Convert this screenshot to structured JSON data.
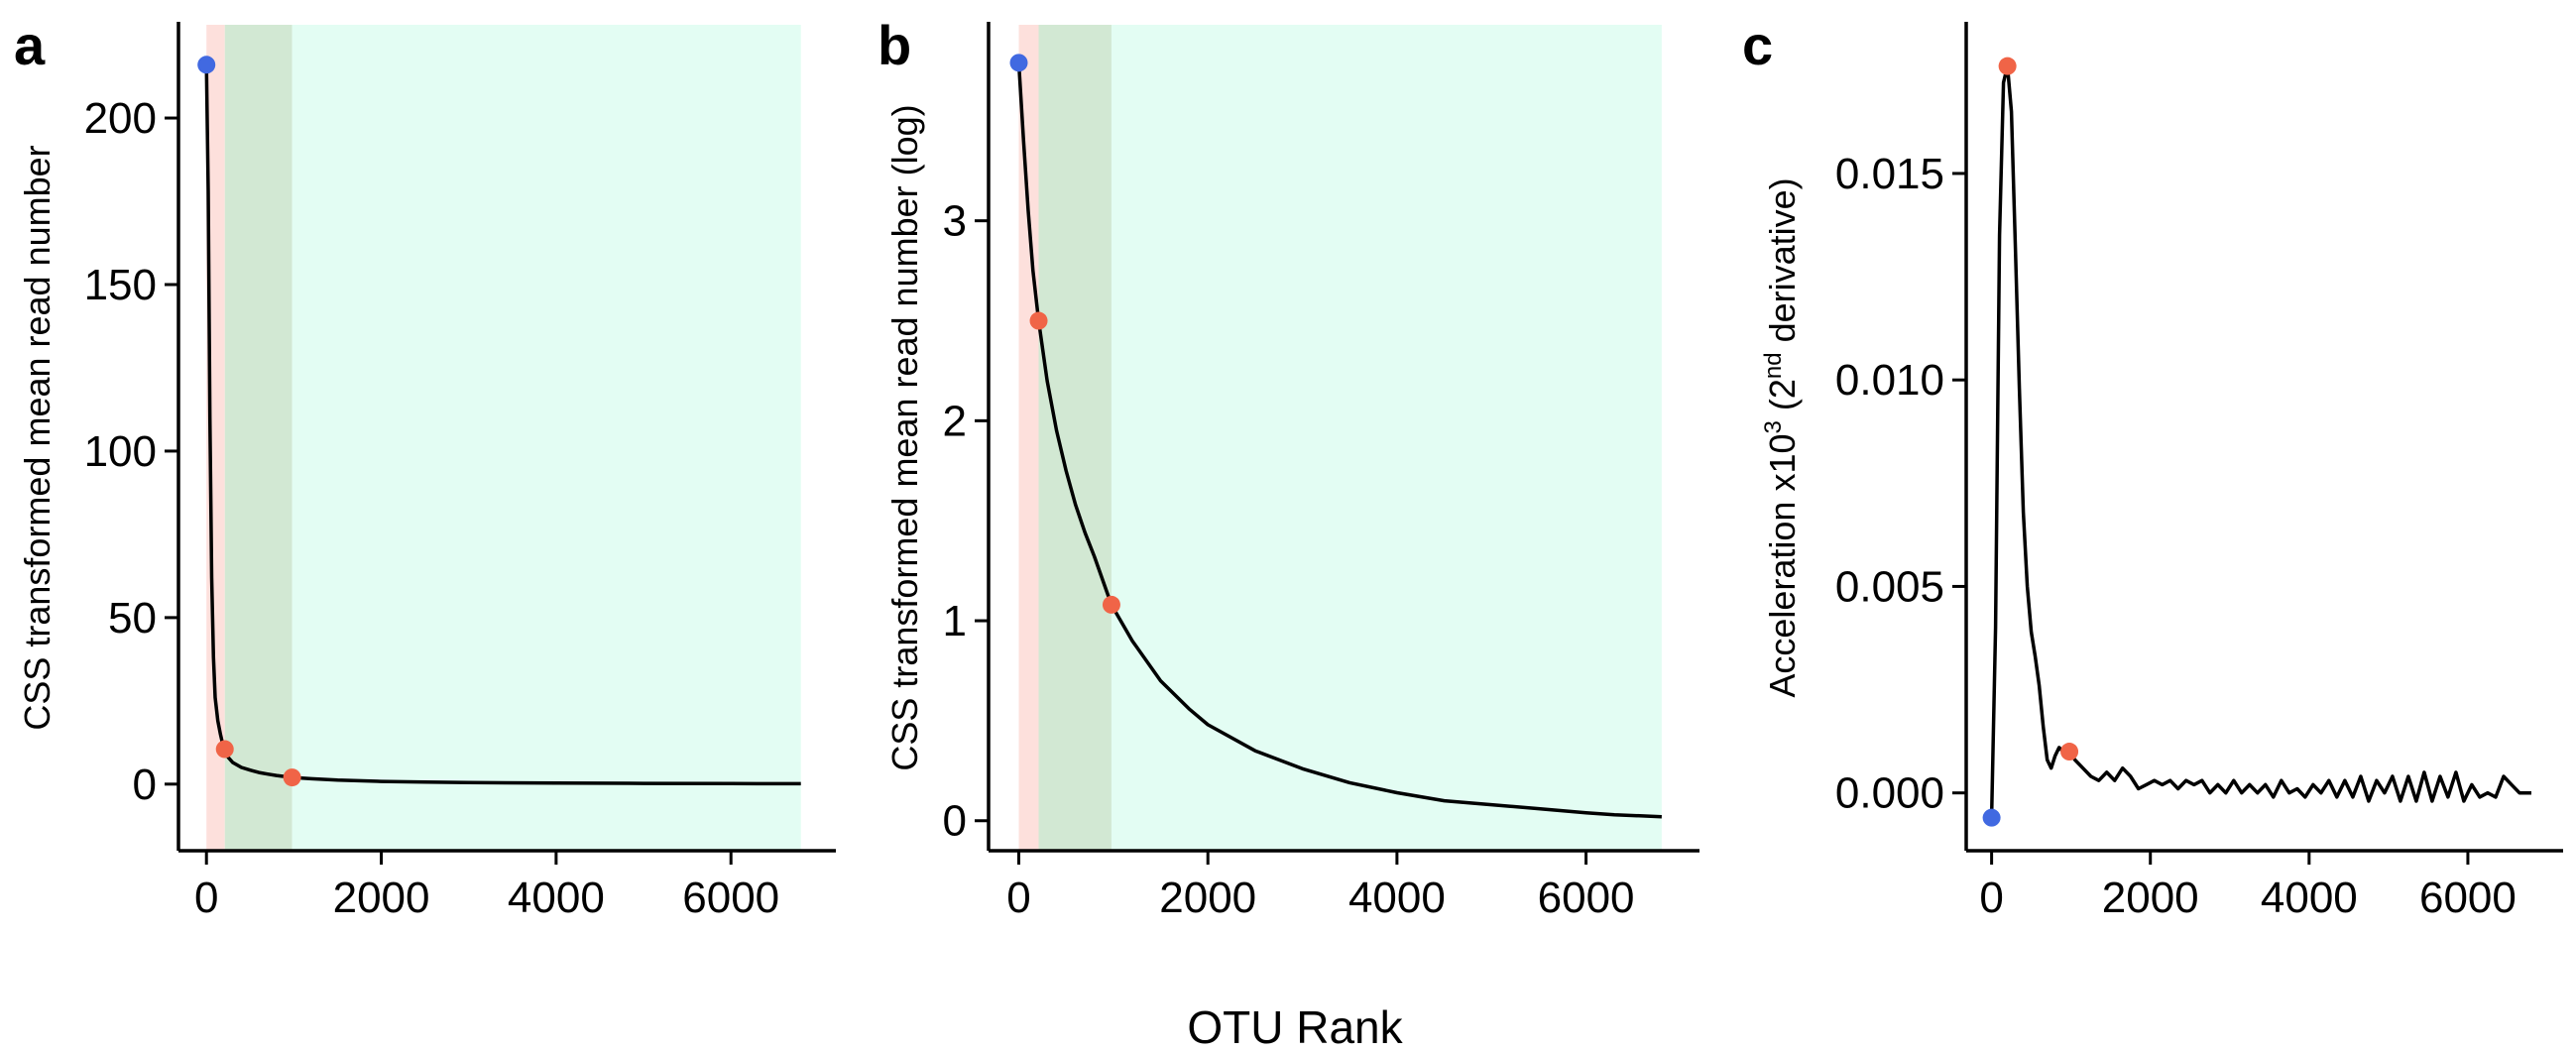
{
  "figure": {
    "xlabel": "OTU Rank"
  },
  "colors": {
    "band_core": "#fde0dc",
    "band_mid": "#d2e8d3",
    "band_rest": "#e3fdf3",
    "curve": "#000000",
    "point_blue": "#4169e1",
    "point_red": "#f06447",
    "axis": "#000000"
  },
  "chart_data": [
    {
      "panel": "a",
      "type": "line",
      "ylabel": "CSS transformed mean read number",
      "xlim": [
        -320,
        7200
      ],
      "ylim": [
        -20,
        228
      ],
      "xticks": [
        0,
        2000,
        4000,
        6000
      ],
      "yticks": [
        0,
        50,
        100,
        150,
        200
      ],
      "bands": [
        [
          0,
          210
        ],
        [
          210,
          980
        ],
        [
          980,
          6800
        ]
      ],
      "series": [
        {
          "x": [
            0,
            20,
            40,
            60,
            80,
            100,
            130,
            160,
            200,
            250,
            300,
            400,
            500,
            600,
            700,
            800,
            980,
            1200,
            1500,
            2000,
            2500,
            3000,
            4000,
            5000,
            6000,
            6800
          ],
          "y": [
            216,
            178,
            110,
            62,
            38,
            26,
            19,
            15,
            10.5,
            8,
            6.5,
            5,
            4.2,
            3.5,
            3,
            2.6,
            2,
            1.6,
            1.2,
            0.8,
            0.6,
            0.45,
            0.3,
            0.22,
            0.16,
            0.12
          ]
        }
      ],
      "points": [
        {
          "x": 0,
          "y": 216,
          "color": "blue"
        },
        {
          "x": 210,
          "y": 10.5,
          "color": "red"
        },
        {
          "x": 980,
          "y": 2,
          "color": "red"
        }
      ]
    },
    {
      "panel": "b",
      "type": "line",
      "ylabel": "CSS transformed mean read number (log)",
      "xlim": [
        -320,
        7200
      ],
      "ylim": [
        -0.15,
        3.98
      ],
      "xticks": [
        0,
        2000,
        4000,
        6000
      ],
      "yticks": [
        0,
        1,
        2,
        3
      ],
      "bands": [
        [
          0,
          210
        ],
        [
          210,
          980
        ],
        [
          980,
          6800
        ]
      ],
      "series": [
        {
          "x": [
            0,
            50,
            100,
            150,
            210,
            300,
            400,
            500,
            600,
            700,
            800,
            980,
            1200,
            1500,
            1800,
            2000,
            2500,
            3000,
            3500,
            4000,
            4500,
            5000,
            5500,
            6000,
            6300,
            6800
          ],
          "y": [
            3.79,
            3.4,
            3.05,
            2.75,
            2.5,
            2.2,
            1.95,
            1.75,
            1.58,
            1.44,
            1.32,
            1.08,
            0.9,
            0.7,
            0.56,
            0.48,
            0.35,
            0.26,
            0.19,
            0.14,
            0.1,
            0.08,
            0.06,
            0.04,
            0.03,
            0.02
          ]
        }
      ],
      "points": [
        {
          "x": 0,
          "y": 3.79,
          "color": "blue"
        },
        {
          "x": 210,
          "y": 2.5,
          "color": "red"
        },
        {
          "x": 980,
          "y": 1.08,
          "color": "red"
        }
      ]
    },
    {
      "panel": "c",
      "type": "line",
      "ylabel": "Acceleration x10",
      "ylabel_sup": "3",
      "ylabel_tail_open": " (2",
      "ylabel_sup2": "nd",
      "ylabel_tail": " derivative)",
      "xlim": [
        -320,
        7200
      ],
      "ylim": [
        -0.0014,
        0.0186
      ],
      "xticks": [
        0,
        2000,
        4000,
        6000
      ],
      "yticks": [
        0.0,
        0.005,
        0.01,
        0.015
      ],
      "ytick_labels": [
        "0.000",
        "0.005",
        "0.010",
        "0.015"
      ],
      "bands": [],
      "series": [
        {
          "x": [
            0,
            50,
            100,
            150,
            200,
            250,
            300,
            350,
            400,
            450,
            500,
            550,
            600,
            650,
            700,
            750,
            800,
            850,
            900,
            980,
            1050,
            1150,
            1250,
            1350,
            1450,
            1550,
            1650,
            1750,
            1850,
            1950,
            2050,
            2150,
            2250,
            2350,
            2450,
            2550,
            2650,
            2750,
            2850,
            2950,
            3050,
            3150,
            3250,
            3350,
            3450,
            3550,
            3650,
            3750,
            3850,
            3950,
            4050,
            4150,
            4250,
            4350,
            4450,
            4550,
            4650,
            4750,
            4850,
            4950,
            5050,
            5150,
            5250,
            5350,
            5450,
            5550,
            5650,
            5750,
            5850,
            5950,
            6050,
            6150,
            6250,
            6350,
            6450,
            6550,
            6650,
            6800
          ],
          "y": [
            -0.0006,
            0.004,
            0.0135,
            0.0172,
            0.0176,
            0.0165,
            0.0132,
            0.0098,
            0.0068,
            0.005,
            0.0039,
            0.0033,
            0.0026,
            0.0016,
            0.0008,
            0.0006,
            0.0009,
            0.0011,
            0.001,
            0.001,
            0.0008,
            0.0006,
            0.0004,
            0.0003,
            0.0005,
            0.0003,
            0.0006,
            0.0004,
            0.0001,
            0.0002,
            0.0003,
            0.0002,
            0.0003,
            0.0001,
            0.0003,
            0.0002,
            0.0003,
            0.0,
            0.0002,
            0.0,
            0.0003,
            0.0,
            0.0002,
            0.0,
            0.0002,
            -0.0001,
            0.0003,
            0.0,
            0.0001,
            -0.0001,
            0.0002,
            0.0,
            0.0003,
            -0.0001,
            0.0003,
            -0.0001,
            0.0004,
            -0.0002,
            0.0003,
            0.0,
            0.0004,
            -0.0002,
            0.0004,
            -0.0002,
            0.0005,
            -0.0002,
            0.0004,
            -0.0001,
            0.0005,
            -0.0002,
            0.0002,
            -0.0001,
            0.0,
            -0.0001,
            0.0004,
            0.0002,
            0.0,
            0.0
          ]
        }
      ],
      "points": [
        {
          "x": 0,
          "y": -0.0006,
          "color": "blue"
        },
        {
          "x": 200,
          "y": 0.0176,
          "color": "red"
        },
        {
          "x": 980,
          "y": 0.001,
          "color": "red"
        }
      ]
    }
  ]
}
